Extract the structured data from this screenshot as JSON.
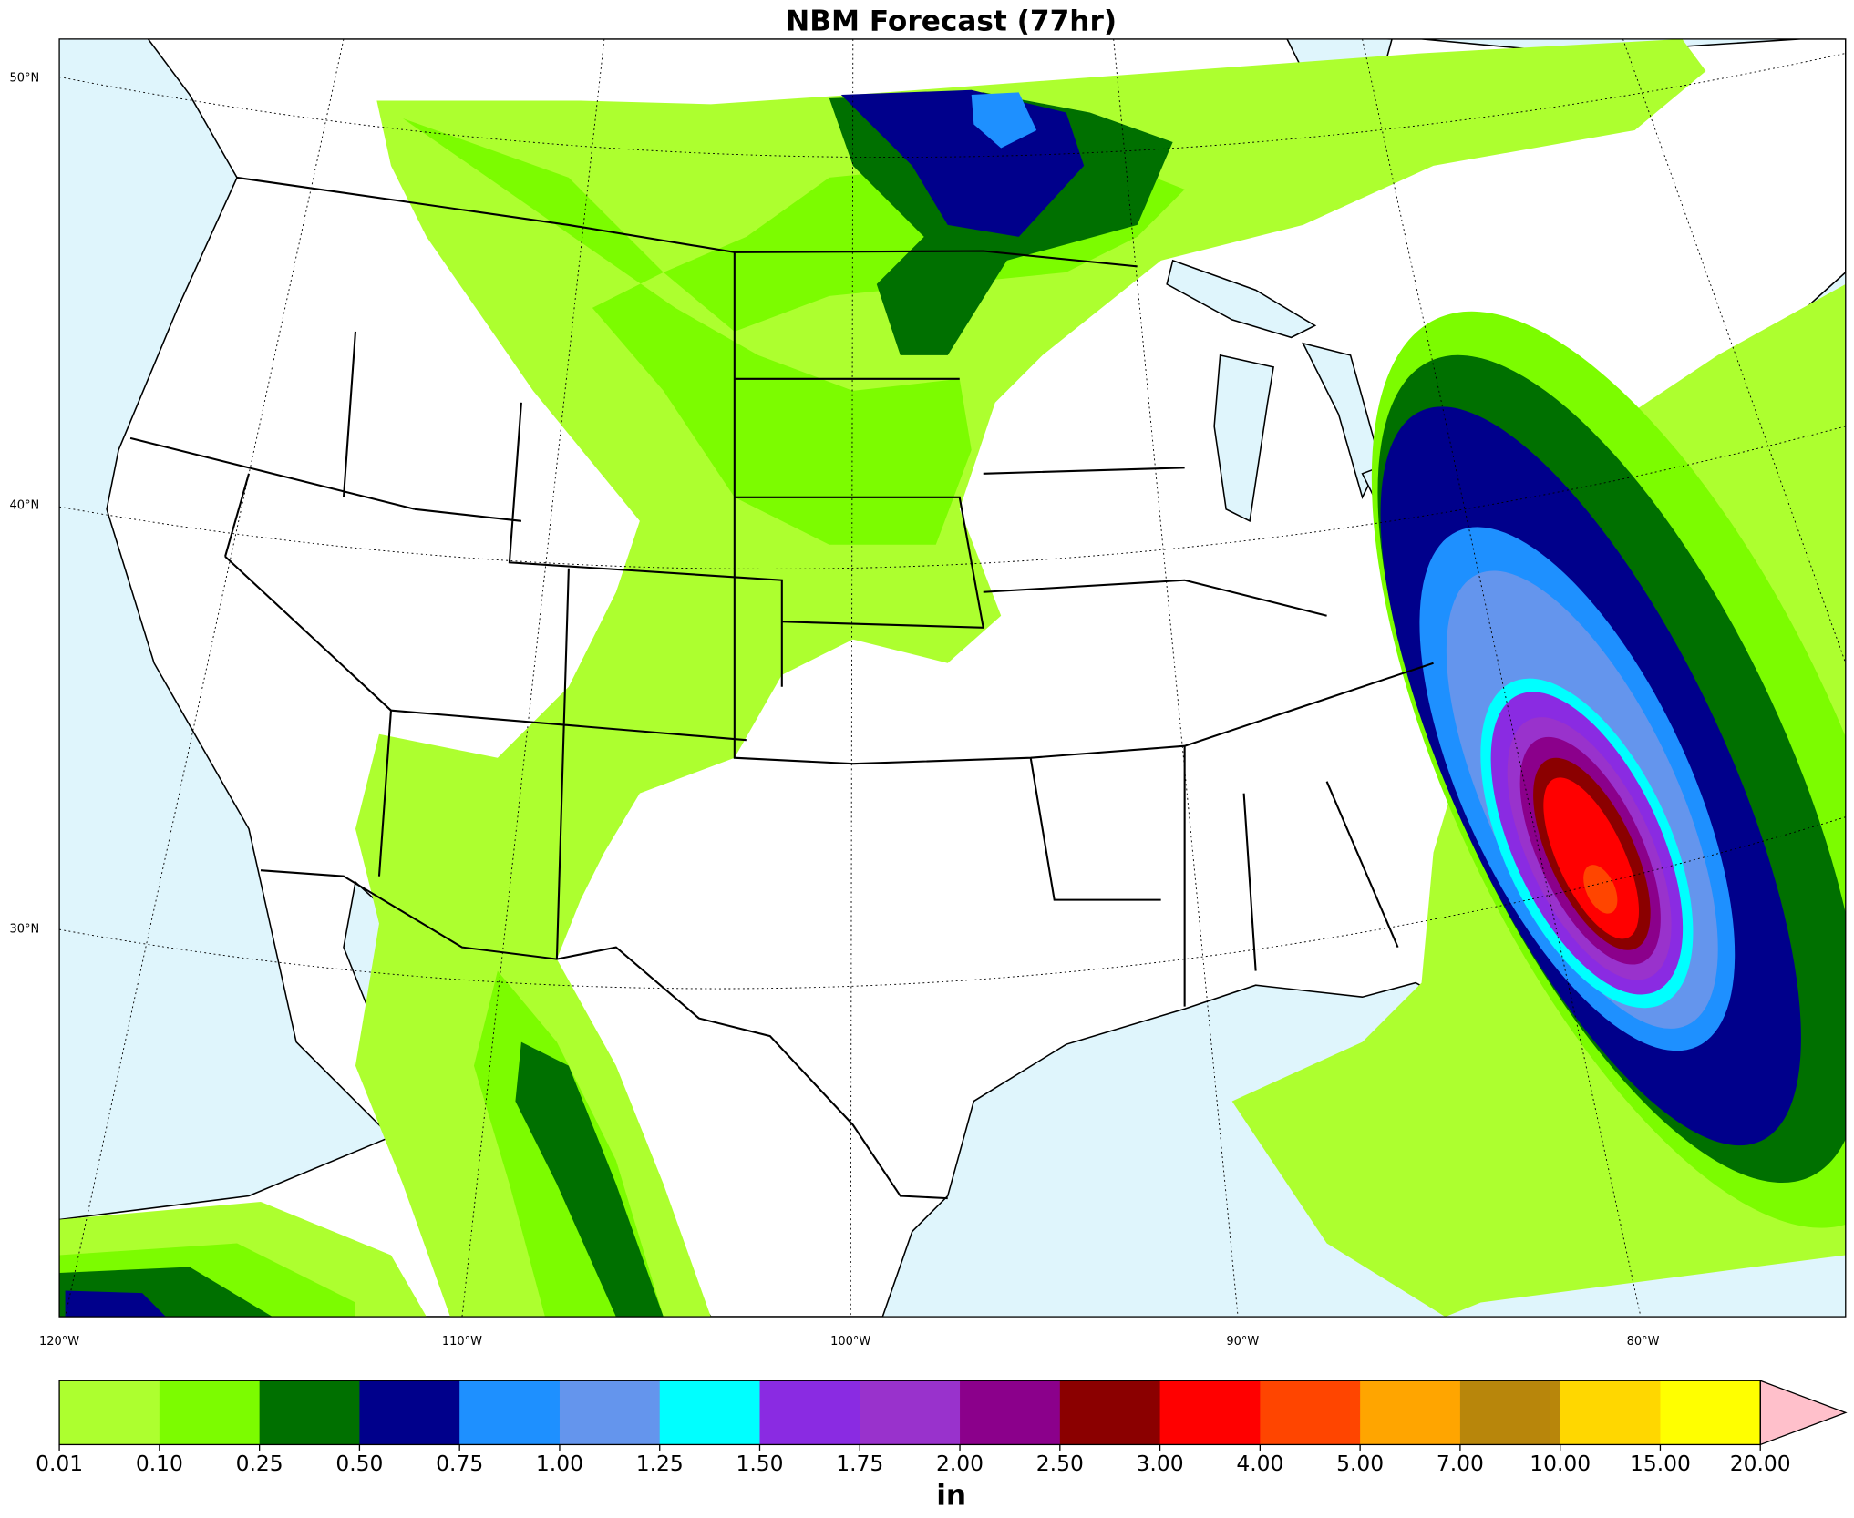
{
  "title": "NBM Forecast (77hr)",
  "map": {
    "lat_labels": [
      "50°N",
      "40°N",
      "30°N"
    ],
    "lon_labels": [
      "120°W",
      "110°W",
      "100°W",
      "90°W",
      "80°W"
    ],
    "land_color": "#ffffff",
    "water_color": "#dff5fc"
  },
  "colorbar": {
    "label": "in",
    "ticks": [
      {
        "value": 0.01,
        "label": "0.01"
      },
      {
        "value": 0.1,
        "label": "0.10"
      },
      {
        "value": 0.25,
        "label": "0.25"
      },
      {
        "value": 0.5,
        "label": "0.50"
      },
      {
        "value": 0.75,
        "label": "0.75"
      },
      {
        "value": 1,
        "label": "1.00"
      },
      {
        "value": 1.25,
        "label": "1.25"
      },
      {
        "value": 1.5,
        "label": "1.50"
      },
      {
        "value": 1.75,
        "label": "1.75"
      },
      {
        "value": 2,
        "label": "2.00"
      },
      {
        "value": 2.5,
        "label": "2.50"
      },
      {
        "value": 3,
        "label": "3.00"
      },
      {
        "value": 4,
        "label": "4.00"
      },
      {
        "value": 5,
        "label": "5.00"
      },
      {
        "value": 7,
        "label": "7.00"
      },
      {
        "value": 10,
        "label": "10.00"
      },
      {
        "value": 15,
        "label": "15.00"
      },
      {
        "value": 20,
        "label": "20.00"
      }
    ],
    "colors": [
      "#adff2f",
      "#7cfc00",
      "#007000",
      "#00008b",
      "#1e90ff",
      "#6495ed",
      "#00ffff",
      "#8a2be2",
      "#9932cc",
      "#8b008b",
      "#8b0000",
      "#ff0000",
      "#ff4500",
      "#ffa500",
      "#b8860b",
      "#ffd700",
      "#ffff00"
    ],
    "extend_color": "#ffc0cb"
  }
}
